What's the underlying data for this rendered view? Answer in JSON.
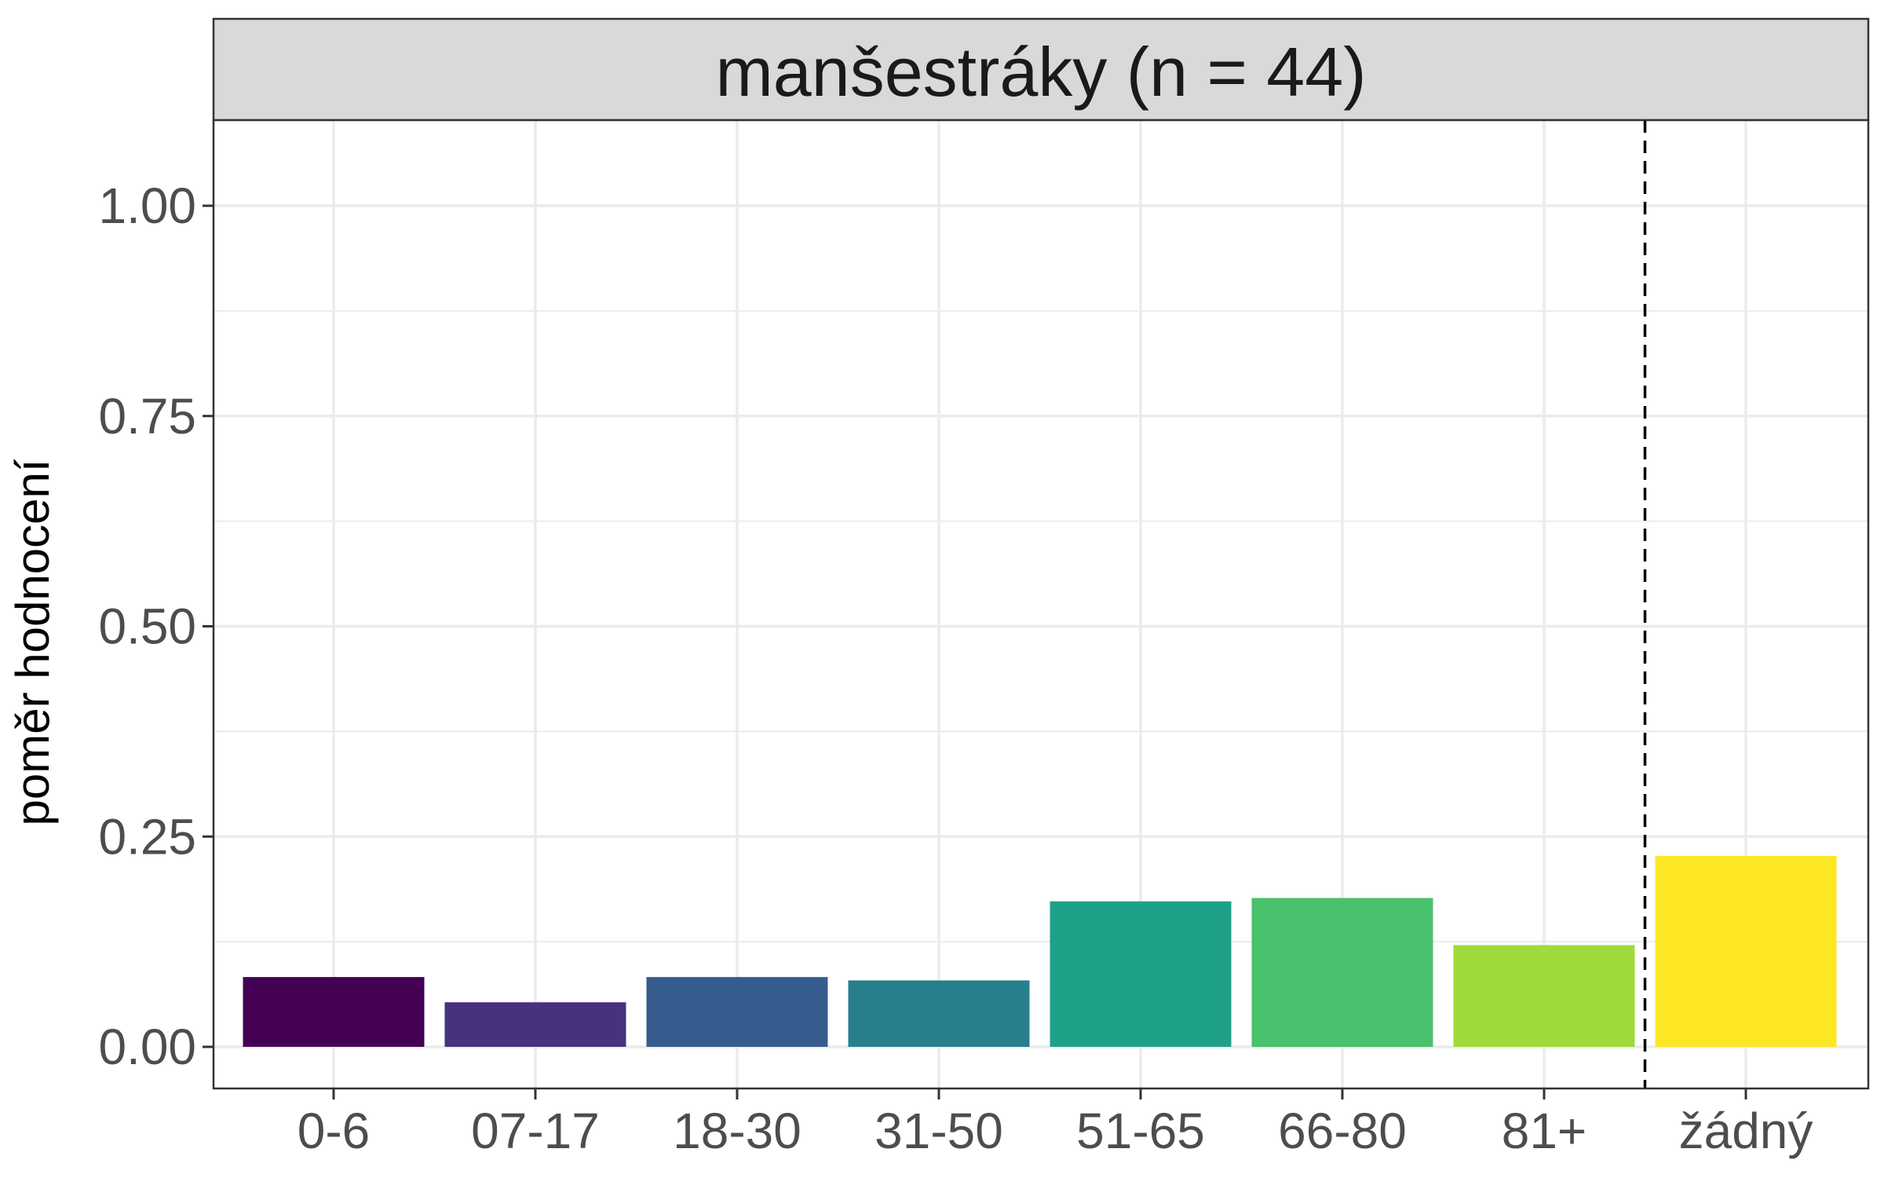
{
  "chart_data": {
    "type": "bar",
    "panel_title": "manšestráky (n = 44)",
    "ylabel": "poměr hodnocení",
    "xlabel": "",
    "categories": [
      "0-6",
      "07-17",
      "18-30",
      "31-50",
      "51-65",
      "66-80",
      "81+",
      "žádný"
    ],
    "values": [
      0.083,
      0.053,
      0.083,
      0.079,
      0.173,
      0.177,
      0.121,
      0.227
    ],
    "colors": [
      "#440154",
      "#46327E",
      "#365C8D",
      "#277F8E",
      "#1FA187",
      "#4AC16D",
      "#9FDA3A",
      "#FDE725"
    ],
    "ylim": [
      -0.05,
      1.1
    ],
    "yticks": [
      0,
      0.25,
      0.5,
      0.75,
      1.0
    ],
    "ytick_labels": [
      "0.00",
      "0.25",
      "0.50",
      "0.75",
      "1.00"
    ],
    "reference_line": {
      "between": [
        "81+",
        "žádný"
      ],
      "style": "dashed"
    },
    "grid": true,
    "legend": "none",
    "theme": {
      "panel_border": "#333333",
      "strip_fill": "#D9D9D9",
      "grid_color": "#EBEBEB"
    }
  }
}
